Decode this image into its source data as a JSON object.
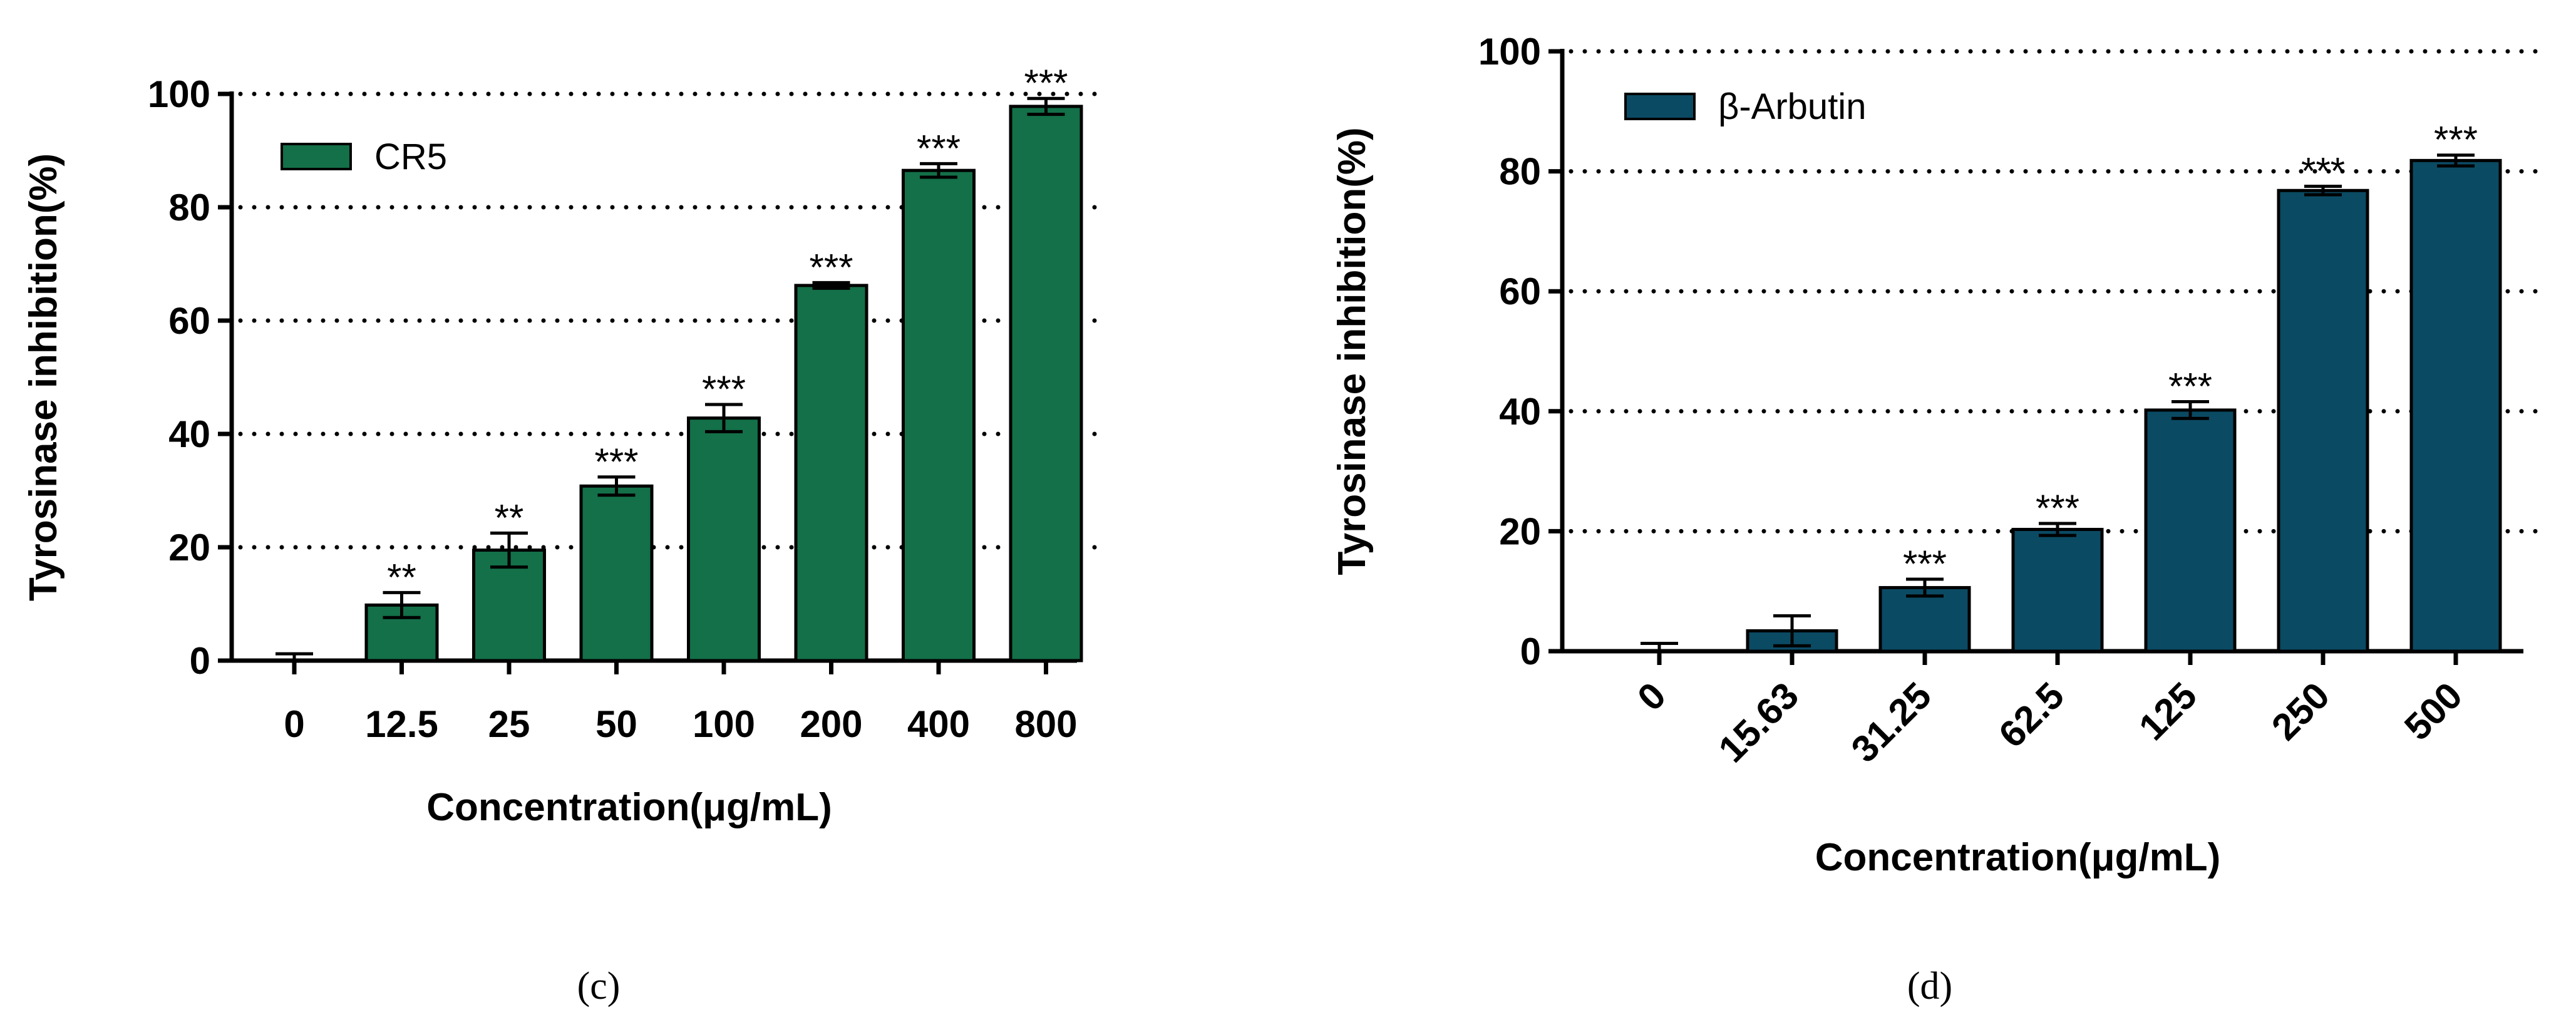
{
  "chart_data": [
    {
      "panel": "c",
      "type": "bar",
      "categories": [
        "0",
        "12.5",
        "25",
        "50",
        "100",
        "200",
        "400",
        "800"
      ],
      "series": [
        {
          "name": "CR5",
          "color": "#137049",
          "values": [
            0,
            9.8,
            19.5,
            30.8,
            42.8,
            66.2,
            86.5,
            97.8
          ],
          "errors": [
            1.2,
            2.2,
            3.0,
            1.6,
            2.4,
            0.5,
            1.2,
            1.4
          ]
        }
      ],
      "significance": [
        "",
        "**",
        "**",
        "***",
        "***",
        "***",
        "***",
        "***"
      ],
      "xlabel": "Concentration(μg/mL)",
      "ylabel": "Tyrosinase inhibition(%)",
      "ylim": [
        0,
        100
      ],
      "yticks": [
        0,
        20,
        40,
        60,
        80,
        100
      ],
      "grid": true,
      "legend_position": "top-left",
      "x_tick_rotation": 0
    },
    {
      "panel": "d",
      "type": "bar",
      "categories": [
        "0",
        "15.63",
        "31.25",
        "62.5",
        "125",
        "250",
        "500"
      ],
      "series": [
        {
          "name": "β-Arbutin",
          "color": "#0b4a63",
          "values": [
            0,
            3.4,
            10.6,
            20.3,
            40.2,
            76.8,
            81.8
          ],
          "errors": [
            1.3,
            2.5,
            1.4,
            1.0,
            1.4,
            0.7,
            0.9
          ]
        }
      ],
      "significance": [
        "",
        "",
        "***",
        "***",
        "***",
        "***",
        "***"
      ],
      "xlabel": "Concentration(μg/mL)",
      "ylabel": "Tyrosinase inhibition(%)",
      "ylim": [
        0,
        100
      ],
      "yticks": [
        0,
        20,
        40,
        60,
        80,
        100
      ],
      "grid": true,
      "legend_position": "top-left",
      "x_tick_rotation": -45
    }
  ],
  "panel_labels": [
    "(c)",
    "(d)"
  ]
}
